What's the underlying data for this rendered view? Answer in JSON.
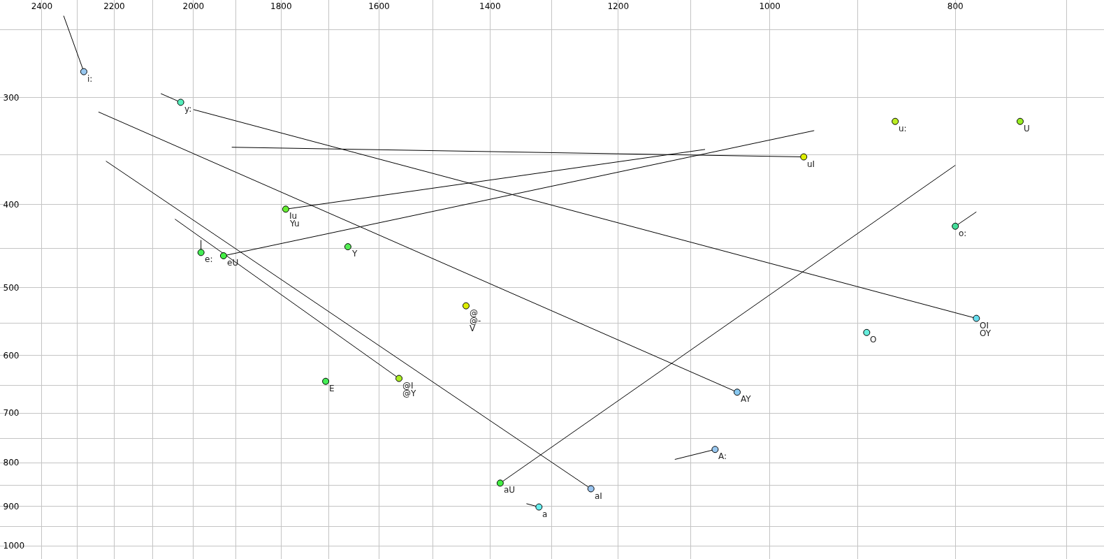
{
  "chart_data": {
    "type": "scatter",
    "log": "xy",
    "grid": true,
    "marker": "circle",
    "xlim": [
      2524,
      669
    ],
    "ylim": [
      1036,
      231
    ],
    "xticks": [
      {
        "value": 2400,
        "label": "2400"
      },
      {
        "value": 2300,
        "label": null
      },
      {
        "value": 2200,
        "label": "2200"
      },
      {
        "value": 2100,
        "label": null
      },
      {
        "value": 2000,
        "label": "2000"
      },
      {
        "value": 1900,
        "label": null
      },
      {
        "value": 1800,
        "label": "1800"
      },
      {
        "value": 1700,
        "label": null
      },
      {
        "value": 1600,
        "label": "1600"
      },
      {
        "value": 1500,
        "label": null
      },
      {
        "value": 1400,
        "label": "1400"
      },
      {
        "value": 1300,
        "label": null
      },
      {
        "value": 1200,
        "label": "1200"
      },
      {
        "value": 1100,
        "label": null
      },
      {
        "value": 1000,
        "label": "1000"
      },
      {
        "value": 900,
        "label": null
      },
      {
        "value": 800,
        "label": "800"
      },
      {
        "value": 700,
        "label": null
      }
    ],
    "yticks": [
      {
        "value": 250,
        "label": null
      },
      300,
      {
        "value": 350,
        "label": null
      },
      400,
      {
        "value": 450,
        "label": null
      },
      500,
      {
        "value": 550,
        "label": null
      },
      600,
      {
        "value": 650,
        "label": null
      },
      700,
      {
        "value": 750,
        "label": null
      },
      800,
      {
        "value": 850,
        "label": null
      },
      900,
      {
        "value": 950,
        "label": null
      },
      1000
    ],
    "series": [
      {
        "type": "line",
        "marker": "none",
        "color": "#000000",
        "x": [
          2338,
          2282
        ],
        "values": [
          241,
          280
        ]
      },
      {
        "type": "line",
        "marker": "none",
        "color": "#000000",
        "x": [
          2080,
          2031
        ],
        "values": [
          297,
          304
        ]
      },
      {
        "type": "line",
        "marker": "none",
        "color": "#000000",
        "x": [
          2000,
          780
        ],
        "values": [
          310,
          543
        ]
      },
      {
        "type": "line",
        "marker": "none",
        "color": "#000000",
        "x": [
          2242,
          1040
        ],
        "values": [
          312,
          662
        ]
      },
      {
        "type": "line",
        "marker": "none",
        "color": "#000000",
        "x": [
          1910,
          960
        ],
        "values": [
          343,
          352
        ]
      },
      {
        "type": "line",
        "marker": "none",
        "color": "#000000",
        "x": [
          1790,
          1081
        ],
        "values": [
          405,
          345
        ]
      },
      {
        "type": "line",
        "marker": "none",
        "color": "#000000",
        "x": [
          1929,
          948
        ],
        "values": [
          459,
          328
        ]
      },
      {
        "type": "line",
        "marker": "none",
        "color": "#000000",
        "x": [
          2222,
          1240
        ],
        "values": [
          356,
          858
        ]
      },
      {
        "type": "line",
        "marker": "none",
        "color": "#000000",
        "x": [
          2045,
          1562
        ],
        "values": [
          416,
          638
        ]
      },
      {
        "type": "line",
        "marker": "none",
        "color": "#000000",
        "x": [
          1982,
          1982
        ],
        "values": [
          440,
          455
        ]
      },
      {
        "type": "line",
        "marker": "none",
        "color": "#000000",
        "x": [
          1383,
          800
        ],
        "values": [
          845,
          360
        ]
      },
      {
        "type": "line",
        "marker": "none",
        "color": "#000000",
        "x": [
          800,
          780
        ],
        "values": [
          424,
          408
        ]
      },
      {
        "type": "line",
        "marker": "none",
        "color": "#000000",
        "x": [
          1121,
          1068
        ],
        "values": [
          793,
          772
        ]
      },
      {
        "type": "line",
        "marker": "none",
        "color": "#000000",
        "x": [
          1340,
          1320
        ],
        "values": [
          893,
          901
        ]
      },
      {
        "x": [
          2282,
          2031,
          860,
          740,
          960,
          1790,
          800,
          1982,
          1929,
          1661,
          1441,
          780,
          890,
          1562,
          1706,
          1040,
          1068,
          1383,
          1240,
          1320
        ],
        "values": [
          280,
          304,
          320,
          320,
          352,
          405,
          424,
          455,
          459,
          448,
          525,
          543,
          564,
          638,
          643,
          662,
          772,
          845,
          858,
          901
        ],
        "colors": [
          "#99c8f0",
          "#55eebb",
          "#bbee22",
          "#99ee22",
          "#ddee00",
          "#66ee33",
          "#44dd99",
          "#44ee55",
          "#44ee44",
          "#55ee55",
          "#ddee00",
          "#66ddee",
          "#66eedd",
          "#aaee22",
          "#44ee55",
          "#88c8f0",
          "#99c8f0",
          "#44ee44",
          "#99c4f0",
          "#66eeee"
        ]
      }
    ],
    "annotations": [
      {
        "text": "i:",
        "x": 2282,
        "y": 280
      },
      {
        "text": "y:",
        "x": 2031,
        "y": 304
      },
      {
        "text": "u:",
        "x": 860,
        "y": 320
      },
      {
        "text": "U",
        "x": 740,
        "y": 320
      },
      {
        "text": "uI",
        "x": 960,
        "y": 352
      },
      {
        "text": "Iu",
        "x": 1790,
        "y": 405
      },
      {
        "text": "Yu",
        "x": 1790,
        "y": 405
      },
      {
        "text": "o:",
        "x": 800,
        "y": 424
      },
      {
        "text": "e:",
        "x": 1982,
        "y": 455
      },
      {
        "text": "eU",
        "x": 1929,
        "y": 459
      },
      {
        "text": "Y",
        "x": 1661,
        "y": 448
      },
      {
        "text": "@",
        "x": 1441,
        "y": 525
      },
      {
        "text": "@-",
        "x": 1441,
        "y": 525
      },
      {
        "text": "V",
        "x": 1441,
        "y": 525
      },
      {
        "text": "OI",
        "x": 780,
        "y": 543
      },
      {
        "text": "OY",
        "x": 780,
        "y": 543
      },
      {
        "text": "O",
        "x": 890,
        "y": 564
      },
      {
        "text": "@I",
        "x": 1562,
        "y": 638
      },
      {
        "text": "@Y",
        "x": 1562,
        "y": 638
      },
      {
        "text": "E",
        "x": 1706,
        "y": 643
      },
      {
        "text": "AY",
        "x": 1040,
        "y": 662
      },
      {
        "text": "A:",
        "x": 1068,
        "y": 772
      },
      {
        "text": "aU",
        "x": 1383,
        "y": 845
      },
      {
        "text": "aI",
        "x": 1240,
        "y": 858
      },
      {
        "text": "a",
        "x": 1320,
        "y": 901
      }
    ]
  }
}
